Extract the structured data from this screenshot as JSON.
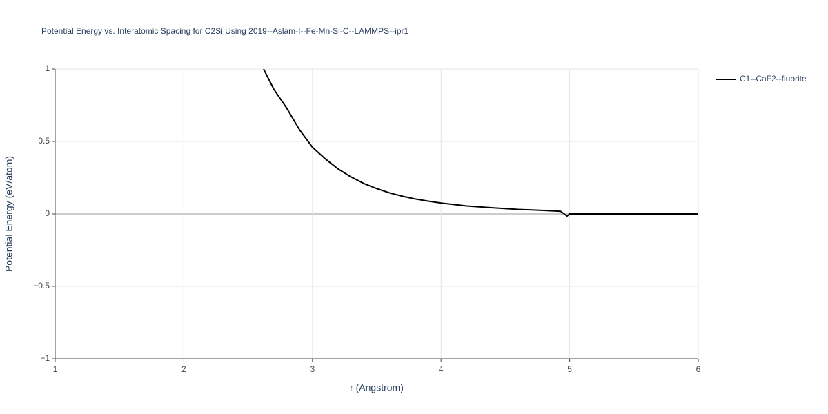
{
  "chart_data": {
    "type": "line",
    "title": "Potential Energy vs. Interatomic Spacing for C2Si Using 2019--Aslam-I--Fe-Mn-Si-C--LAMMPS--ipr1",
    "x_label": "r (Angstrom)",
    "y_label": "Potential Energy (eV/atom)",
    "x": [
      2.62,
      2.7,
      2.8,
      2.9,
      3.0,
      3.1,
      3.2,
      3.3,
      3.4,
      3.5,
      3.6,
      3.7,
      3.8,
      3.9,
      4.0,
      4.2,
      4.4,
      4.6,
      4.8,
      4.93,
      4.98,
      5.0,
      5.5,
      6.0
    ],
    "series": [
      {
        "name": "C1--CaF2--fluorite",
        "color": "#000000",
        "values": [
          1.0,
          0.86,
          0.73,
          0.58,
          0.46,
          0.38,
          0.31,
          0.255,
          0.21,
          0.175,
          0.145,
          0.122,
          0.103,
          0.088,
          0.075,
          0.055,
          0.042,
          0.031,
          0.024,
          0.018,
          -0.015,
          0,
          0,
          0
        ]
      }
    ],
    "xlim": [
      1,
      6
    ],
    "xticks": [
      1,
      2,
      3,
      4,
      5,
      6
    ],
    "ylim": [
      -1,
      1
    ],
    "yticks": [
      {
        "value": -1,
        "label": "−1"
      },
      {
        "value": -0.5,
        "label": "−0.5"
      },
      0,
      0.5,
      1
    ],
    "grid": true,
    "legend": "right"
  }
}
